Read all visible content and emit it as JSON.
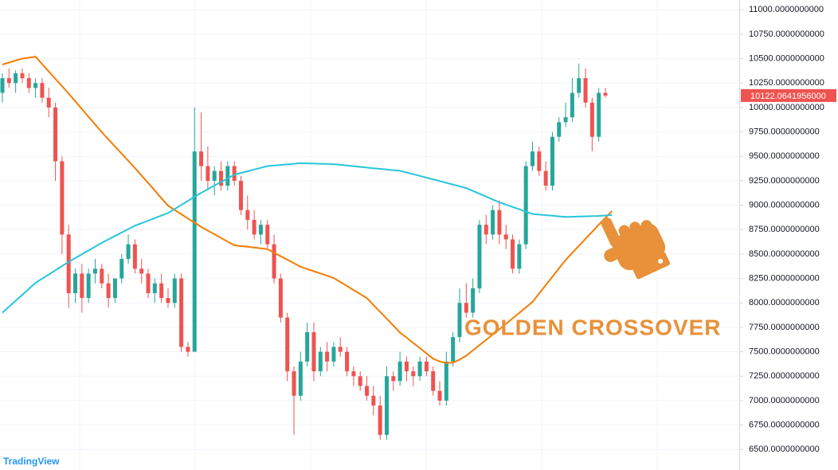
{
  "chart_data": {
    "type": "candlestick",
    "ylim": [
      6290,
      11100
    ],
    "yticks": [
      {
        "value": 6500,
        "label": "6500.0000000000"
      },
      {
        "value": 6750,
        "label": "6750.0000000000"
      },
      {
        "value": 7000,
        "label": "7000.0000000000"
      },
      {
        "value": 7250,
        "label": "7250.0000000000"
      },
      {
        "value": 7500,
        "label": "7500.0000000000"
      },
      {
        "value": 7750,
        "label": "7750.0000000000"
      },
      {
        "value": 8000,
        "label": "8000.0000000000"
      },
      {
        "value": 8250,
        "label": "8250.0000000000"
      },
      {
        "value": 8500,
        "label": "8500.0000000000"
      },
      {
        "value": 8750,
        "label": "8750.0000000000"
      },
      {
        "value": 9000,
        "label": "9000.0000000000"
      },
      {
        "value": 9250,
        "label": "9250.0000000000"
      },
      {
        "value": 9500,
        "label": "9500.0000000000"
      },
      {
        "value": 9750,
        "label": "9750.0000000000"
      },
      {
        "value": 10000,
        "label": "10000.0000000000"
      },
      {
        "value": 10250,
        "label": "10250.0000000000"
      },
      {
        "value": 10500,
        "label": "10500.0000000000"
      },
      {
        "value": 10750,
        "label": "10750.0000000000"
      },
      {
        "value": 11000,
        "label": "11000.0000000000"
      }
    ],
    "grid": true,
    "up_color": "#26a69a",
    "down_color": "#ef5350",
    "last_price": {
      "value": 10122.0641956,
      "label": "10122.0641956000"
    },
    "annotation": "GOLDEN CROSSOVER",
    "watermark": "TradingView",
    "candles": [
      [
        10150,
        10350,
        10050,
        10300
      ],
      [
        10300,
        10400,
        10200,
        10250
      ],
      [
        10250,
        10380,
        10150,
        10350
      ],
      [
        10350,
        10400,
        10250,
        10300
      ],
      [
        10300,
        10350,
        10150,
        10200
      ],
      [
        10200,
        10300,
        10100,
        10250
      ],
      [
        10250,
        10300,
        10050,
        10100
      ],
      [
        10100,
        10200,
        9900,
        10000
      ],
      [
        10000,
        10050,
        9250,
        9450
      ],
      [
        9450,
        9500,
        8500,
        8700
      ],
      [
        8700,
        8800,
        7950,
        8100
      ],
      [
        8100,
        8350,
        8000,
        8300
      ],
      [
        8300,
        8400,
        7900,
        8050
      ],
      [
        8050,
        8350,
        8000,
        8300
      ],
      [
        8300,
        8450,
        8200,
        8350
      ],
      [
        8350,
        8400,
        8150,
        8200
      ],
      [
        8200,
        8300,
        7950,
        8050
      ],
      [
        8050,
        8250,
        8000,
        8250
      ],
      [
        8250,
        8500,
        8200,
        8450
      ],
      [
        8450,
        8700,
        8400,
        8600
      ],
      [
        8600,
        8650,
        8300,
        8350
      ],
      [
        8350,
        8450,
        8200,
        8300
      ],
      [
        8300,
        8350,
        8050,
        8100
      ],
      [
        8100,
        8250,
        8000,
        8200
      ],
      [
        8200,
        8300,
        8000,
        8050
      ],
      [
        8050,
        8150,
        7950,
        8000
      ],
      [
        8000,
        8300,
        7950,
        8250
      ],
      [
        8250,
        8300,
        7500,
        7550
      ],
      [
        7550,
        7600,
        7450,
        7500
      ],
      [
        7500,
        10000,
        7500,
        9550
      ],
      [
        9550,
        9950,
        9250,
        9400
      ],
      [
        9400,
        9600,
        9150,
        9250
      ],
      [
        9250,
        9400,
        9100,
        9350
      ],
      [
        9350,
        9450,
        9150,
        9200
      ],
      [
        9200,
        9450,
        9150,
        9400
      ],
      [
        9400,
        9450,
        9200,
        9250
      ],
      [
        9250,
        9300,
        8900,
        8950
      ],
      [
        8950,
        9100,
        8750,
        8850
      ],
      [
        8850,
        8950,
        8650,
        8700
      ],
      [
        8700,
        8850,
        8600,
        8800
      ],
      [
        8800,
        8850,
        8550,
        8600
      ],
      [
        8600,
        8700,
        8200,
        8250
      ],
      [
        8250,
        8300,
        7800,
        7850
      ],
      [
        7850,
        7900,
        7200,
        7300
      ],
      [
        7300,
        7350,
        6650,
        7050
      ],
      [
        7050,
        7500,
        7000,
        7400
      ],
      [
        7400,
        7800,
        7350,
        7700
      ],
      [
        7700,
        7800,
        7200,
        7300
      ],
      [
        7300,
        7550,
        7250,
        7500
      ],
      [
        7500,
        7600,
        7300,
        7400
      ],
      [
        7400,
        7600,
        7350,
        7550
      ],
      [
        7550,
        7650,
        7450,
        7500
      ],
      [
        7500,
        7550,
        7250,
        7300
      ],
      [
        7300,
        7350,
        7150,
        7250
      ],
      [
        7250,
        7300,
        7100,
        7150
      ],
      [
        7150,
        7250,
        7000,
        7050
      ],
      [
        7050,
        7150,
        6850,
        6950
      ],
      [
        6950,
        7050,
        6600,
        6650
      ],
      [
        6650,
        7350,
        6600,
        7250
      ],
      [
        7250,
        7300,
        7100,
        7200
      ],
      [
        7200,
        7500,
        7150,
        7400
      ],
      [
        7400,
        7450,
        7200,
        7300
      ],
      [
        7300,
        7350,
        7150,
        7250
      ],
      [
        7250,
        7450,
        7200,
        7400
      ],
      [
        7400,
        7450,
        7250,
        7300
      ],
      [
        7300,
        7350,
        7050,
        7100
      ],
      [
        7100,
        7200,
        6950,
        7000
      ],
      [
        7000,
        7500,
        6950,
        7400
      ],
      [
        7400,
        7700,
        7350,
        7650
      ],
      [
        7650,
        8150,
        7600,
        8000
      ],
      [
        8000,
        8200,
        7850,
        7900
      ],
      [
        7900,
        8250,
        7850,
        8150
      ],
      [
        8150,
        8850,
        8100,
        8800
      ],
      [
        8800,
        8900,
        8600,
        8700
      ],
      [
        8700,
        9000,
        8650,
        8950
      ],
      [
        8950,
        9050,
        8600,
        8700
      ],
      [
        8700,
        8800,
        8550,
        8650
      ],
      [
        8650,
        8700,
        8300,
        8350
      ],
      [
        8350,
        8650,
        8300,
        8600
      ],
      [
        8600,
        9450,
        8550,
        9400
      ],
      [
        9400,
        9650,
        9350,
        9550
      ],
      [
        9550,
        9600,
        9300,
        9350
      ],
      [
        9350,
        9450,
        9150,
        9200
      ],
      [
        9200,
        9750,
        9150,
        9700
      ],
      [
        9700,
        9900,
        9650,
        9850
      ],
      [
        9850,
        10050,
        9800,
        9900
      ],
      [
        9900,
        10300,
        9850,
        10150
      ],
      [
        10150,
        10450,
        10100,
        10300
      ],
      [
        10300,
        10400,
        10000,
        10050
      ],
      [
        10050,
        10100,
        9550,
        9700
      ],
      [
        9700,
        10200,
        9650,
        10150
      ],
      [
        10150,
        10200,
        10100,
        10122
      ]
    ],
    "series": [
      {
        "color": "#f57c00",
        "values": [
          10440,
          10460,
          10480,
          10500,
          10510,
          10520,
          10444,
          10369,
          10293,
          10218,
          10142,
          10063,
          9984,
          9905,
          9826,
          9747,
          9674,
          9601,
          9528,
          9454,
          9381,
          9304,
          9227,
          9150,
          9072,
          8995,
          8951,
          8908,
          8864,
          8821,
          8777,
          8740,
          8703,
          8665,
          8628,
          8590,
          8582,
          8574,
          8566,
          8558,
          8550,
          8514,
          8478,
          8442,
          8406,
          8370,
          8347,
          8324,
          8301,
          8278,
          8255,
          8214,
          8173,
          8132,
          8091,
          8050,
          7979,
          7909,
          7838,
          7768,
          7697,
          7644,
          7590,
          7537,
          7483,
          7430,
          7400,
          7385,
          7390,
          7420,
          7460,
          7514,
          7568,
          7622,
          7676,
          7730,
          7786,
          7842,
          7898,
          7954,
          8010,
          8096,
          8182,
          8268,
          8354,
          8440,
          8512,
          8584,
          8656,
          8728,
          8800,
          8870,
          8940
        ]
      },
      {
        "color": "#26c6da",
        "values": [
          7900,
          7961,
          8022,
          8083,
          8144,
          8205,
          8248,
          8291,
          8334,
          8377,
          8420,
          8459,
          8498,
          8537,
          8576,
          8615,
          8650,
          8685,
          8720,
          8755,
          8790,
          8816,
          8842,
          8868,
          8894,
          8920,
          8961,
          9003,
          9044,
          9086,
          9127,
          9164,
          9201,
          9238,
          9275,
          9312,
          9330,
          9347,
          9365,
          9382,
          9400,
          9406,
          9412,
          9418,
          9424,
          9430,
          9428,
          9426,
          9424,
          9422,
          9420,
          9413,
          9406,
          9399,
          9392,
          9385,
          9378,
          9372,
          9365,
          9359,
          9352,
          9335,
          9317,
          9300,
          9282,
          9265,
          9247,
          9229,
          9211,
          9193,
          9175,
          9146,
          9117,
          9088,
          9059,
          9030,
          9006,
          8982,
          8958,
          8934,
          8910,
          8904,
          8898,
          8892,
          8886,
          8880,
          8882,
          8884,
          8886,
          8888,
          8890,
          8895,
          8900
        ]
      }
    ]
  }
}
